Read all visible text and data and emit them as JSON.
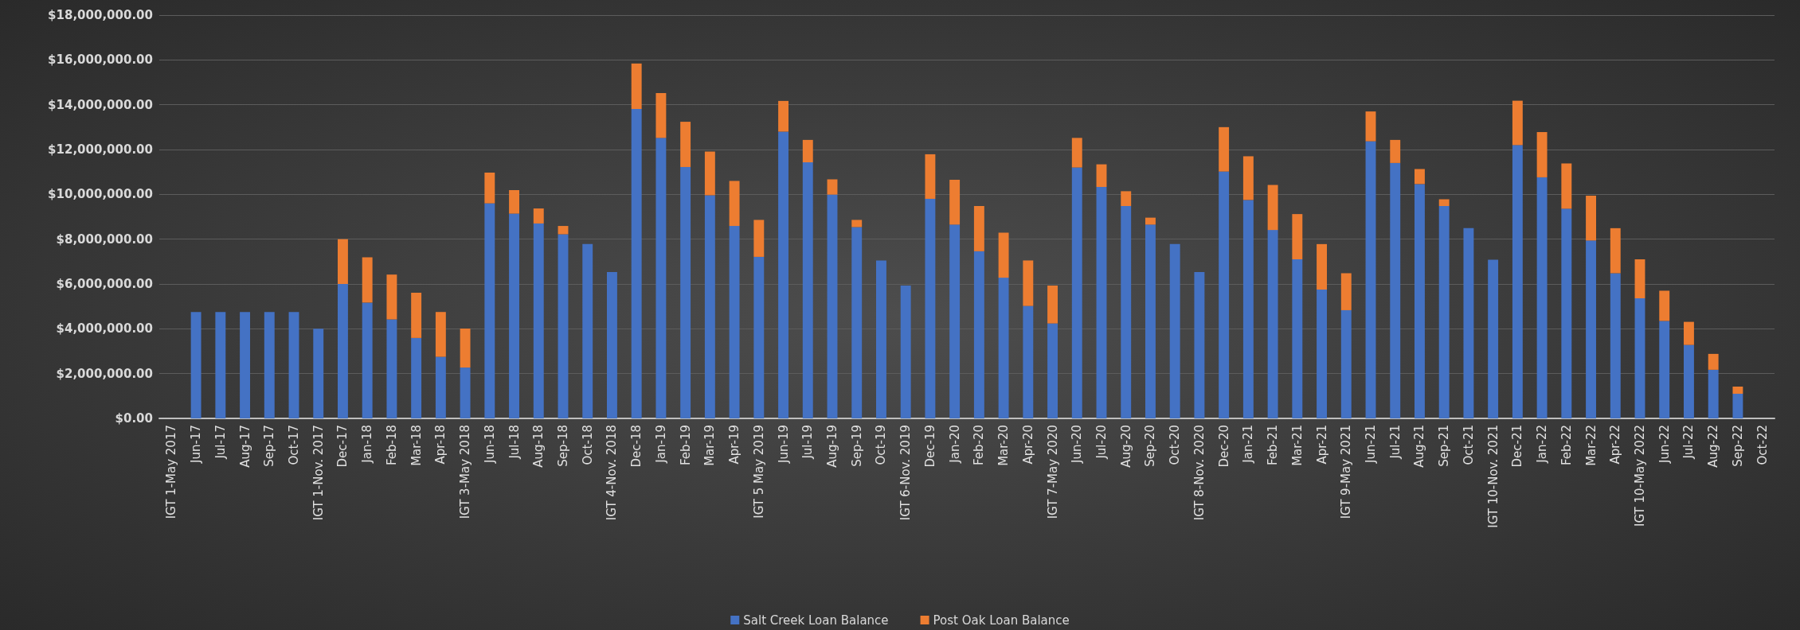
{
  "chart_data": {
    "type": "bar",
    "stacked": true,
    "categories": [
      "IGT 1-May 2017",
      "Jun-17",
      "Jul-17",
      "Aug-17",
      "Sep-17",
      "Oct-17",
      "IGT 1-Nov. 2017",
      "Dec-17",
      "Jan-18",
      "Feb-18",
      "Mar-18",
      "Apr-18",
      "IGT 3-May 2018",
      "Jun-18",
      "Jul-18",
      "Aug-18",
      "Sep-18",
      "Oct-18",
      "IGT 4-Nov. 2018",
      "Dec-18",
      "Jan-19",
      "Feb-19",
      "Mar-19",
      "Apr-19",
      "IGT 5 May 2019",
      "Jun-19",
      "Jul-19",
      "Aug-19",
      "Sep-19",
      "Oct-19",
      "IGT 6-Nov. 2019",
      "Dec-19",
      "Jan-20",
      "Feb-20",
      "Mar-20",
      "Apr-20",
      "IGT 7-May 2020",
      "Jun-20",
      "Jul-20",
      "Aug-20",
      "Sep-20",
      "Oct-20",
      "IGT 8-Nov. 2020",
      "Dec-20",
      "Jan-21",
      "Feb-21",
      "Mar-21",
      "Apr-21",
      "IGT 9-May 2021",
      "Jun-21",
      "Jul-21",
      "Aug-21",
      "Sep-21",
      "Oct-21",
      "IGT 10-Nov. 2021",
      "Dec-21",
      "Jan-22",
      "Feb-22",
      "Mar-22",
      "Apr-22",
      "IGT 10-May 2022",
      "Jun-22",
      "Jul-22",
      "Aug-22",
      "Sep-22",
      "Oct-22"
    ],
    "series": [
      {
        "name": "Salt Creek Loan Balance",
        "color": "#4472c4",
        "values": [
          null,
          4750000,
          4750000,
          4750000,
          4750000,
          4750000,
          4000000,
          6000000,
          5170000,
          4420000,
          3590000,
          2750000,
          2270000,
          9600000,
          9140000,
          8700000,
          8220000,
          7780000,
          6530000,
          13810000,
          12520000,
          11220000,
          9960000,
          8590000,
          7210000,
          12800000,
          11430000,
          9990000,
          8540000,
          7050000,
          5930000,
          9800000,
          8650000,
          7460000,
          6280000,
          5020000,
          4240000,
          11200000,
          10330000,
          9480000,
          8650000,
          7780000,
          6530000,
          11020000,
          9750000,
          8410000,
          7100000,
          5750000,
          4830000,
          12370000,
          11400000,
          10460000,
          9480000,
          8490000,
          7080000,
          12200000,
          10760000,
          9360000,
          7940000,
          6480000,
          5360000,
          4350000,
          3280000,
          2170000,
          1100000,
          null
        ]
      },
      {
        "name": "Post Oak Loan Balance",
        "color": "#ed7d31",
        "values": [
          null,
          null,
          null,
          null,
          null,
          null,
          null,
          2000000,
          2020000,
          2000000,
          2020000,
          2000000,
          1740000,
          1370000,
          1050000,
          670000,
          370000,
          null,
          null,
          2030000,
          2000000,
          2020000,
          1950000,
          2010000,
          1650000,
          1370000,
          1000000,
          680000,
          320000,
          null,
          null,
          1990000,
          2000000,
          2020000,
          2010000,
          2030000,
          1690000,
          1320000,
          1010000,
          660000,
          310000,
          null,
          null,
          1980000,
          1950000,
          2010000,
          2020000,
          2030000,
          1650000,
          1330000,
          1030000,
          670000,
          300000,
          null,
          null,
          1980000,
          2020000,
          2020000,
          2000000,
          2010000,
          1740000,
          1350000,
          1030000,
          710000,
          320000,
          null
        ]
      }
    ],
    "ylim": [
      0,
      18000000
    ],
    "yticks": [
      {
        "value": 0,
        "label": "$0.00"
      },
      {
        "value": 2000000,
        "label": "$2,000,000.00"
      },
      {
        "value": 4000000,
        "label": "$4,000,000.00"
      },
      {
        "value": 6000000,
        "label": "$6,000,000.00"
      },
      {
        "value": 8000000,
        "label": "$8,000,000.00"
      },
      {
        "value": 10000000,
        "label": "$10,000,000.00"
      },
      {
        "value": 12000000,
        "label": "$12,000,000.00"
      },
      {
        "value": 14000000,
        "label": "$14,000,000.00"
      },
      {
        "value": 16000000,
        "label": "$16,000,000.00"
      },
      {
        "value": 18000000,
        "label": "$18,000,000.00"
      }
    ],
    "grid": "y",
    "legend": "bottom"
  }
}
